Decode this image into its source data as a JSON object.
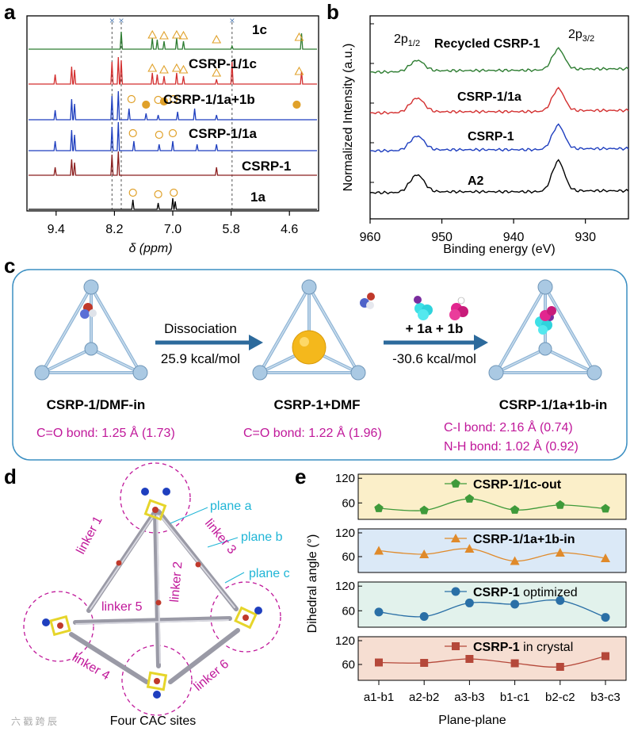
{
  "panel_letters": {
    "a": "a",
    "b": "b",
    "c": "c",
    "d": "d",
    "e": "e"
  },
  "colors": {
    "green": "#2e7d32",
    "red": "#d32f2f",
    "blue": "#1f3fbf",
    "darkred": "#8b1e1e",
    "black": "#000000",
    "magenta": "#c0189a",
    "cyan": "#1fb5d6",
    "orange_marker": "#e0a12a",
    "panel_c_border": "#3b8fc2",
    "panel_c_arrow": "#2c6a9c",
    "e_bg1": "#fbefc9",
    "e_bg2": "#dbe9f7",
    "e_bg3": "#e2f2ec",
    "e_bg4": "#f6ded2"
  },
  "chart_data": [
    {
      "panel": "a",
      "type": "line",
      "title": "",
      "xlabel": "δ (ppm)",
      "x_ticks": [
        "9.4",
        "8.2",
        "7.0",
        "5.8",
        "4.6"
      ],
      "x_tick_values": [
        9.4,
        8.2,
        7.0,
        5.8,
        4.6
      ],
      "xlim": [
        10.0,
        4.0
      ],
      "series_labels": [
        "1c",
        "CSRP-1/1c",
        "CSRP-1/1a+1b",
        "CSRP-1/1a",
        "CSRP-1",
        "1a"
      ],
      "dashed_reference_ppm": [
        8.25,
        8.06,
        5.78
      ],
      "marker_legend": {
        "cross": "×",
        "triangle": "△",
        "circle": "○"
      }
    },
    {
      "panel": "b",
      "type": "line",
      "title": "",
      "xlabel": "Binding energy (eV)",
      "ylabel": "Normalized Intensity (a.u.)",
      "x_ticks": [
        "960",
        "950",
        "940",
        "930"
      ],
      "x_tick_values": [
        960,
        950,
        940,
        930
      ],
      "xlim": [
        960,
        924
      ],
      "peaks_eV": {
        "2p1/2": 953.5,
        "2p3/2": 933.8
      },
      "peak_label_1": "2p",
      "peak_label_1_sub": "1/2",
      "peak_label_2": "2p",
      "peak_label_2_sub": "3/2",
      "series_labels": [
        "Recycled CSRP-1",
        "CSRP-1/1a",
        "CSRP-1",
        "A2"
      ]
    },
    {
      "panel": "e",
      "type": "line",
      "xlabel": "Plane-plane",
      "ylabel": "Dihedral angle (°)",
      "categories": [
        "a1-b1",
        "a2-b2",
        "a3-b3",
        "b1-c1",
        "b2-c2",
        "b3-c3"
      ],
      "yticks": [
        "60",
        "120"
      ],
      "ylim": [
        20,
        130
      ],
      "series": [
        {
          "name": "CSRP-1/1c-out",
          "name_suffix": "",
          "marker": "pentagon",
          "values": [
            47,
            42,
            70,
            43,
            55,
            46
          ]
        },
        {
          "name": "CSRP-1/1a+1b-in",
          "name_suffix": "",
          "marker": "triangle",
          "values": [
            75,
            66,
            80,
            49,
            70,
            56
          ]
        },
        {
          "name": "CSRP-1",
          "name_suffix": " optimized",
          "marker": "circle",
          "values": [
            57,
            46,
            79,
            76,
            85,
            44
          ]
        },
        {
          "name": "CSRP-1",
          "name_suffix": " in crystal",
          "marker": "square",
          "values": [
            65,
            64,
            74,
            63,
            54,
            81
          ]
        }
      ]
    }
  ],
  "panel_c": {
    "step1_label": "Dissociation",
    "step1_energy": "25.9 kcal/mol",
    "step2_label": "+ 1a + 1b",
    "step2_energy": "-30.6 kcal/mol",
    "state1_name": "CSRP-1/DMF-in",
    "state1_bond": "C=O bond: 1.25 Å (1.73)",
    "state2_name": "CSRP-1+DMF",
    "state2_bond": "C=O bond: 1.22 Å (1.96)",
    "state3_name": "CSRP-1/1a+1b-in",
    "state3_bond1": "C-I bond: 2.16 Å (0.74)",
    "state3_bond2": "N-H bond: 1.02 Å (0.92)"
  },
  "panel_d": {
    "linkers": [
      "linker 1",
      "linker 2",
      "linker 3",
      "linker 4",
      "linker 5",
      "linker 6"
    ],
    "planes": [
      "plane a",
      "plane b",
      "plane c"
    ],
    "caption": "Four CAC sites"
  },
  "watermark": "六 戳 跨 辰"
}
